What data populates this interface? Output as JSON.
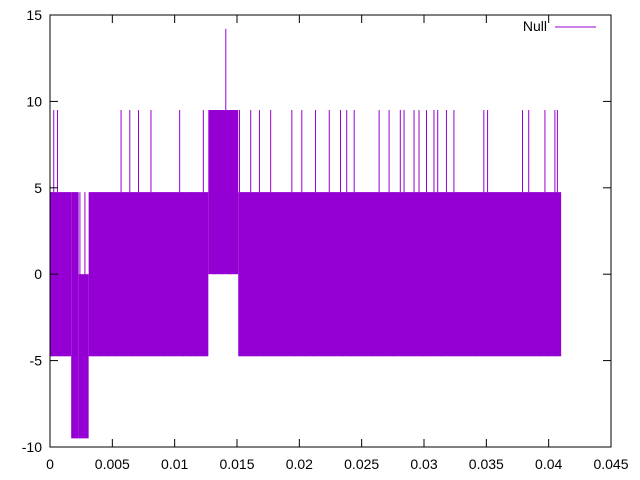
{
  "chart_data": {
    "type": "line",
    "title": "",
    "xlabel": "",
    "ylabel": "",
    "xlim": [
      0,
      0.045
    ],
    "ylim": [
      -10,
      15
    ],
    "x_ticks": [
      0,
      0.005,
      0.01,
      0.015,
      0.02,
      0.025,
      0.03,
      0.035,
      0.04,
      0.045
    ],
    "x_tick_labels": [
      "0",
      "0.005",
      "0.01",
      "0.015",
      "0.02",
      "0.025",
      "0.03",
      "0.035",
      "0.04",
      "0.045"
    ],
    "y_ticks": [
      -10,
      -5,
      0,
      5,
      10,
      15
    ],
    "y_tick_labels": [
      "-10",
      "-5",
      "0",
      "5",
      "10",
      "15"
    ],
    "grid": false,
    "legend_position": "top-right",
    "series": [
      {
        "name": "Null",
        "color": "#9400d3",
        "x_range": [
          0,
          0.041
        ],
        "levels": [
          -9.5,
          -4.75,
          0,
          4.75,
          9.5,
          14.2
        ],
        "segments": [
          {
            "x_range": [
              0,
              0.0017
            ],
            "y_range": [
              -4.75,
              4.75
            ]
          },
          {
            "x_range": [
              0.0017,
              0.0023
            ],
            "y_range": [
              -9.5,
              4.75
            ]
          },
          {
            "x_range": [
              0.0023,
              0.0031
            ],
            "y_range": [
              -9.5,
              0
            ]
          },
          {
            "x_range": [
              0.0031,
              0.0127
            ],
            "y_range": [
              -4.75,
              4.75
            ]
          },
          {
            "x_range": [
              0.0127,
              0.0151
            ],
            "y_range": [
              0,
              9.5
            ]
          },
          {
            "x_range": [
              0.0151,
              0.041
            ],
            "y_range": [
              -4.75,
              4.75
            ]
          }
        ],
        "spikes_to_9_5": [
          0.0003,
          0.0006,
          0.0057,
          0.0064,
          0.0071,
          0.0081,
          0.0104,
          0.0123,
          0.0128,
          0.0133,
          0.0136,
          0.0139,
          0.0146,
          0.0149,
          0.0152,
          0.0161,
          0.0168,
          0.0177,
          0.0194,
          0.0202,
          0.0213,
          0.0224,
          0.0233,
          0.0238,
          0.0244,
          0.0264,
          0.0272,
          0.0281,
          0.0284,
          0.0292,
          0.0296,
          0.0302,
          0.0308,
          0.0311,
          0.0318,
          0.0324,
          0.0348,
          0.0351,
          0.0379,
          0.0384,
          0.0397,
          0.0405,
          0.0407
        ],
        "peak": {
          "x": 0.0141,
          "y": 14.2
        }
      }
    ]
  }
}
